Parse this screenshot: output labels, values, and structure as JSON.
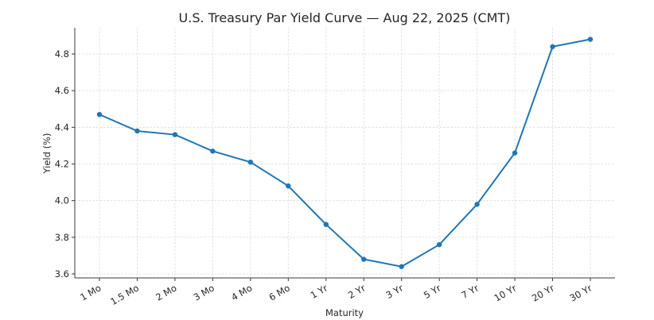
{
  "chart_data": {
    "type": "line",
    "title": "U.S. Treasury Par Yield Curve — Aug 22, 2025 (CMT)",
    "xlabel": "Maturity",
    "ylabel": "Yield (%)",
    "categories": [
      "1 Mo",
      "1.5 Mo",
      "2 Mo",
      "3 Mo",
      "4 Mo",
      "6 Mo",
      "1 Yr",
      "2 Yr",
      "3 Yr",
      "5 Yr",
      "7 Yr",
      "10 Yr",
      "20 Yr",
      "30 Yr"
    ],
    "series": [
      {
        "name": "Yield",
        "color": "#1f77b4",
        "marker": "circle",
        "values": [
          4.47,
          4.38,
          4.36,
          4.27,
          4.21,
          4.08,
          3.87,
          3.68,
          3.64,
          3.76,
          3.98,
          4.26,
          4.84,
          4.88
        ]
      }
    ],
    "yticks": [
      3.6,
      3.8,
      4.0,
      4.2,
      4.4,
      4.6,
      4.8
    ],
    "ytick_labels": [
      "3.6",
      "3.8",
      "4.0",
      "4.2",
      "4.4",
      "4.6",
      "4.8"
    ],
    "ylim": [
      3.58,
      4.93
    ],
    "grid": true,
    "legend": false,
    "xtick_rotation": 30
  }
}
